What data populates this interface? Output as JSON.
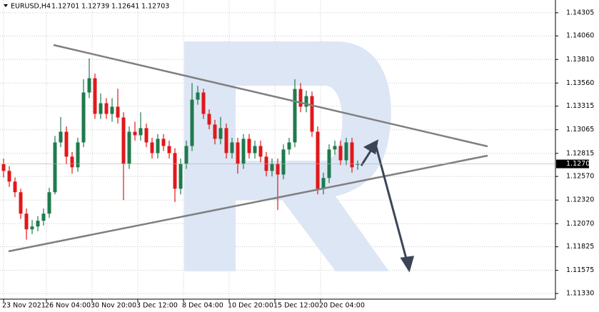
{
  "chart_data": {
    "type": "candlestick",
    "title": "EURUSD,H4",
    "ylim": [
      1.1127,
      1.1444
    ],
    "yticks": [
      1.14305,
      {
        "value": 1.1406,
        "label": "1.14060"
      },
      {
        "value": 1.1381,
        "label": "1.13810"
      },
      {
        "value": 1.1356,
        "label": "1.13560"
      },
      1.13315,
      1.13065,
      1.12815,
      {
        "value": 1.1257,
        "label": "1.12570"
      },
      {
        "value": 1.1232,
        "label": "1.12320"
      },
      {
        "value": 1.1207,
        "label": "1.12070"
      },
      1.11825,
      1.11575,
      {
        "value": 1.1133,
        "label": "1.11330"
      }
    ],
    "xticks": [
      {
        "value": 0,
        "label": "23 Nov 2021"
      },
      {
        "value": 7.5,
        "label": "26 Nov 04:00"
      },
      {
        "value": 15.5,
        "label": "30 Nov 20:00"
      },
      {
        "value": 23.5,
        "label": "3 Dec 12:00"
      },
      {
        "value": 31.5,
        "label": "8 Dec 04:00"
      },
      {
        "value": 39.5,
        "label": "10 Dec 20:00"
      },
      {
        "value": 47.5,
        "label": "15 Dec 12:00"
      },
      {
        "value": 55.5,
        "label": "20 Dec 04:00"
      }
    ],
    "grid": true,
    "up_color": "#1f7a4d",
    "down_color": "#e0181b",
    "open": [
      1.127,
      1.12629,
      1.12516,
      1.12403,
      1.12176,
      1.1201,
      1.1204,
      1.12101,
      1.12176,
      1.12403,
      1.12931,
      1.13044,
      1.1278,
      1.12667,
      1.12931,
      1.1346,
      1.13611,
      1.13233,
      1.13346,
      1.13233,
      1.13309,
      1.13195,
      1.12705,
      1.13044,
      1.13007,
      1.13082,
      1.12931,
      1.12818,
      1.12969,
      1.12893,
      1.12818,
      1.1244,
      1.12705,
      1.12893,
      1.13384,
      1.1346,
      1.13233,
      1.1312,
      1.12969,
      1.13082,
      1.12818,
      1.12931,
      1.12705,
      1.12969,
      1.12818,
      1.12893,
      1.1278,
      1.12629,
      1.12705,
      1.12591,
      1.12856,
      1.12931,
      1.13497,
      1.13309,
      1.13422,
      1.13044,
      1.1244,
      1.12554,
      1.12856,
      1.12893,
      1.12742,
      1.12931,
      1.12701
    ],
    "high": [
      1.1276,
      1.1268,
      1.1256,
      1.1244,
      1.1223,
      1.1211,
      1.1215,
      1.1223,
      1.1245,
      1.13,
      1.132,
      1.131,
      1.1283,
      1.1298,
      1.136,
      1.1382,
      1.1366,
      1.1345,
      1.134,
      1.134,
      1.135,
      1.1325,
      1.131,
      1.1315,
      1.1325,
      1.1313,
      1.1298,
      1.1302,
      1.1302,
      1.1295,
      1.1287,
      1.1276,
      1.1295,
      1.1356,
      1.1353,
      1.135,
      1.1328,
      1.1317,
      1.132,
      1.1313,
      1.1298,
      1.1298,
      1.1302,
      1.1302,
      1.1295,
      1.1295,
      1.1283,
      1.1276,
      1.1276,
      1.1291,
      1.1298,
      1.136,
      1.1356,
      1.1348,
      1.1347,
      1.131,
      1.1261,
      1.1291,
      1.1295,
      1.1295,
      1.1298,
      1.1298,
      1.12739
    ],
    "low": [
      1.1256,
      1.1246,
      1.1235,
      1.1212,
      1.119,
      1.1196,
      1.1199,
      1.1205,
      1.1213,
      1.1238,
      1.1288,
      1.127,
      1.126,
      1.1262,
      1.1288,
      1.134,
      1.1318,
      1.1318,
      1.1318,
      1.1315,
      1.1313,
      1.1232,
      1.1265,
      1.1295,
      1.1295,
      1.1288,
      1.1276,
      1.1276,
      1.1284,
      1.1276,
      1.123,
      1.1238,
      1.1265,
      1.1284,
      1.1333,
      1.1318,
      1.1307,
      1.1291,
      1.1291,
      1.1276,
      1.1276,
      1.126,
      1.1265,
      1.1276,
      1.1276,
      1.1272,
      1.1257,
      1.1257,
      1.12214,
      1.1254,
      1.128,
      1.1288,
      1.1325,
      1.1325,
      1.1299,
      1.1238,
      1.1238,
      1.125,
      1.128,
      1.1269,
      1.1269,
      1.1261,
      1.12641
    ],
    "close": [
      1.12629,
      1.12516,
      1.12403,
      1.12176,
      1.1201,
      1.1204,
      1.12101,
      1.12176,
      1.12403,
      1.12931,
      1.13044,
      1.1278,
      1.12667,
      1.12931,
      1.1346,
      1.13611,
      1.13233,
      1.13346,
      1.13233,
      1.13309,
      1.13195,
      1.12705,
      1.13044,
      1.13007,
      1.13082,
      1.12931,
      1.12818,
      1.12969,
      1.12893,
      1.12818,
      1.1244,
      1.12705,
      1.12893,
      1.13384,
      1.1346,
      1.13233,
      1.1312,
      1.12969,
      1.13082,
      1.12818,
      1.12931,
      1.12705,
      1.12969,
      1.12818,
      1.12893,
      1.1278,
      1.12629,
      1.12705,
      1.12591,
      1.12856,
      1.12931,
      1.13497,
      1.13309,
      1.13422,
      1.13044,
      1.1244,
      1.12554,
      1.12856,
      1.12893,
      1.12742,
      1.12931,
      1.12667,
      1.12703
    ]
  }
}
